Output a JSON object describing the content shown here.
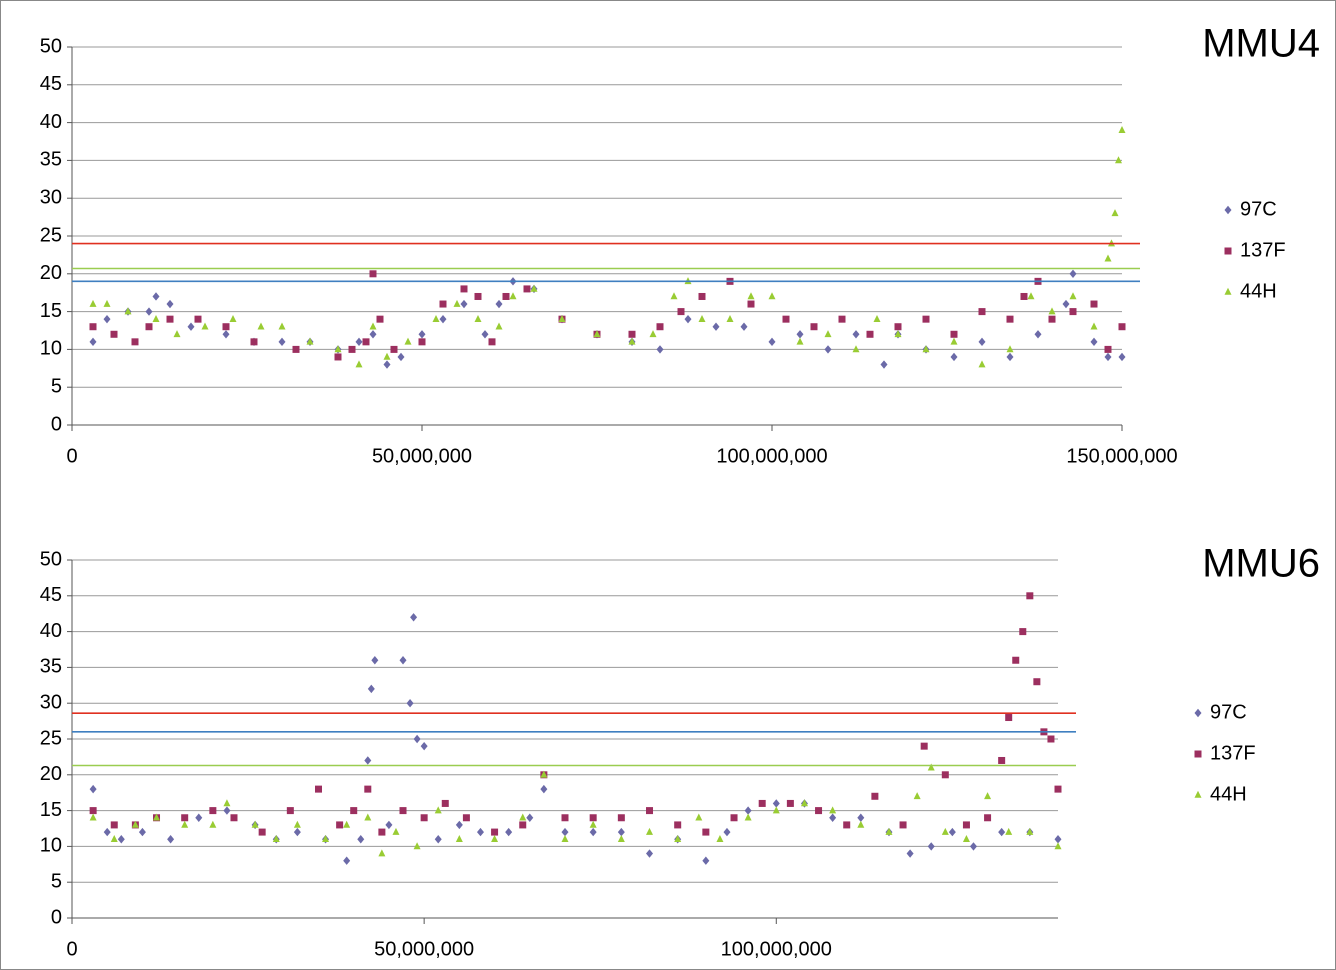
{
  "chart_data": [
    {
      "type": "scatter",
      "title": "MMU4",
      "xlim": [
        0,
        150000000
      ],
      "xticks": [
        0,
        {
          "value": 50000000,
          "label": "50,000,000"
        },
        {
          "value": 100000000,
          "label": "100,000,000"
        },
        {
          "value": 150000000,
          "label": "150,000,000"
        }
      ],
      "ylim": [
        0,
        50
      ],
      "yticks": [
        0,
        5,
        10,
        15,
        20,
        25,
        30,
        35,
        40,
        45,
        50
      ],
      "grid": true,
      "legend": "right",
      "reference_lines": [
        {
          "value": 24,
          "color": "#e03020"
        },
        {
          "value": 20.7,
          "color": "#9acd50"
        },
        {
          "value": 19,
          "color": "#3f7fc0"
        }
      ],
      "series": [
        {
          "name": "97C",
          "color": "#6b6aa8",
          "marker": "diamond",
          "x": [
            3000000,
            5000000,
            8000000,
            11000000,
            12000000,
            14000000,
            17000000,
            22000000,
            26000000,
            30000000,
            34000000,
            38000000,
            41000000,
            43000000,
            45000000,
            47000000,
            50000000,
            53000000,
            56000000,
            59000000,
            61000000,
            63000000,
            66000000,
            70000000,
            75000000,
            80000000,
            84000000,
            88000000,
            92000000,
            96000000,
            100000000,
            104000000,
            108000000,
            112000000,
            116000000,
            118000000,
            122000000,
            126000000,
            130000000,
            134000000,
            138000000,
            142000000,
            143000000,
            146000000,
            148000000,
            150000000
          ],
          "values": [
            11,
            14,
            15,
            15,
            17,
            16,
            13,
            12,
            11,
            11,
            11,
            10,
            11,
            12,
            8,
            9,
            12,
            14,
            16,
            12,
            16,
            19,
            18,
            14,
            12,
            11,
            10,
            14,
            13,
            13,
            11,
            12,
            10,
            12,
            8,
            12,
            10,
            9,
            11,
            9,
            12,
            16,
            20,
            11,
            9,
            9
          ]
        },
        {
          "name": "137F",
          "color": "#9c2f5f",
          "marker": "square",
          "x": [
            3000000,
            6000000,
            9000000,
            11000000,
            14000000,
            18000000,
            22000000,
            26000000,
            32000000,
            38000000,
            40000000,
            42000000,
            43000000,
            44000000,
            46000000,
            50000000,
            53000000,
            56000000,
            58000000,
            60000000,
            62000000,
            65000000,
            70000000,
            75000000,
            80000000,
            84000000,
            87000000,
            90000000,
            94000000,
            97000000,
            102000000,
            106000000,
            110000000,
            114000000,
            118000000,
            122000000,
            126000000,
            130000000,
            134000000,
            136000000,
            138000000,
            140000000,
            143000000,
            146000000,
            148000000,
            150000000
          ],
          "values": [
            13,
            12,
            11,
            13,
            14,
            14,
            13,
            11,
            10,
            9,
            10,
            11,
            20,
            14,
            10,
            11,
            16,
            18,
            17,
            11,
            17,
            18,
            14,
            12,
            12,
            13,
            15,
            17,
            19,
            16,
            14,
            13,
            14,
            12,
            13,
            14,
            12,
            15,
            14,
            17,
            19,
            14,
            15,
            16,
            10,
            13
          ]
        },
        {
          "name": "44H",
          "color": "#99cc33",
          "marker": "triangle",
          "x": [
            3000000,
            5000000,
            8000000,
            12000000,
            15000000,
            19000000,
            23000000,
            27000000,
            30000000,
            34000000,
            38000000,
            41000000,
            43000000,
            45000000,
            48000000,
            52000000,
            55000000,
            58000000,
            61000000,
            63000000,
            66000000,
            70000000,
            75000000,
            80000000,
            83000000,
            86000000,
            88000000,
            90000000,
            94000000,
            97000000,
            100000000,
            104000000,
            108000000,
            112000000,
            115000000,
            118000000,
            122000000,
            126000000,
            130000000,
            134000000,
            137000000,
            140000000,
            143000000,
            146000000,
            148000000,
            148500000,
            149000000,
            149500000,
            150000000
          ],
          "values": [
            16,
            16,
            15,
            14,
            12,
            13,
            14,
            13,
            13,
            11,
            10,
            8,
            13,
            9,
            11,
            14,
            16,
            14,
            13,
            17,
            18,
            14,
            12,
            11,
            12,
            17,
            19,
            14,
            14,
            17,
            17,
            11,
            12,
            10,
            14,
            12,
            10,
            11,
            8,
            10,
            17,
            15,
            17,
            13,
            22,
            24,
            28,
            35,
            39
          ]
        }
      ]
    },
    {
      "type": "scatter",
      "title": "MMU6",
      "xlim": [
        0,
        140000000
      ],
      "xticks": [
        0,
        {
          "value": 50000000,
          "label": "50,000,000"
        },
        {
          "value": 100000000,
          "label": "100,000,000"
        }
      ],
      "ylim": [
        0,
        50
      ],
      "yticks": [
        0,
        5,
        10,
        15,
        20,
        25,
        30,
        35,
        40,
        45,
        50
      ],
      "grid": true,
      "legend": "right",
      "reference_lines": [
        {
          "value": 28.6,
          "color": "#e03020"
        },
        {
          "value": 26,
          "color": "#3f7fc0"
        },
        {
          "value": 21.3,
          "color": "#9acd50"
        }
      ],
      "series": [
        {
          "name": "97C",
          "color": "#6b6aa8",
          "marker": "diamond",
          "x": [
            3000000,
            5000000,
            7000000,
            10000000,
            14000000,
            18000000,
            22000000,
            26000000,
            29000000,
            32000000,
            36000000,
            39000000,
            41000000,
            42000000,
            42500000,
            43000000,
            45000000,
            47000000,
            48000000,
            48500000,
            49000000,
            50000000,
            52000000,
            55000000,
            58000000,
            62000000,
            65000000,
            67000000,
            70000000,
            74000000,
            78000000,
            82000000,
            86000000,
            90000000,
            93000000,
            96000000,
            100000000,
            104000000,
            108000000,
            112000000,
            116000000,
            119000000,
            122000000,
            125000000,
            128000000,
            132000000,
            136000000,
            140000000
          ],
          "values": [
            18,
            12,
            11,
            12,
            11,
            14,
            15,
            13,
            11,
            12,
            11,
            8,
            11,
            22,
            32,
            36,
            13,
            36,
            30,
            42,
            25,
            24,
            11,
            13,
            12,
            12,
            14,
            18,
            12,
            12,
            12,
            9,
            11,
            8,
            12,
            15,
            16,
            16,
            14,
            14,
            12,
            9,
            10,
            12,
            10,
            12,
            12,
            11
          ]
        },
        {
          "name": "137F",
          "color": "#9c2f5f",
          "marker": "square",
          "x": [
            3000000,
            6000000,
            9000000,
            12000000,
            16000000,
            20000000,
            23000000,
            27000000,
            31000000,
            35000000,
            38000000,
            40000000,
            42000000,
            44000000,
            47000000,
            50000000,
            53000000,
            56000000,
            60000000,
            64000000,
            67000000,
            70000000,
            74000000,
            78000000,
            82000000,
            86000000,
            90000000,
            94000000,
            98000000,
            102000000,
            106000000,
            110000000,
            114000000,
            118000000,
            121000000,
            124000000,
            127000000,
            130000000,
            132000000,
            133000000,
            134000000,
            135000000,
            136000000,
            137000000,
            138000000,
            139000000,
            140000000
          ],
          "values": [
            15,
            13,
            13,
            14,
            14,
            15,
            14,
            12,
            15,
            18,
            13,
            15,
            18,
            12,
            15,
            14,
            16,
            14,
            12,
            13,
            20,
            14,
            14,
            14,
            15,
            13,
            12,
            14,
            16,
            16,
            15,
            13,
            17,
            13,
            24,
            20,
            13,
            14,
            22,
            28,
            36,
            40,
            45,
            33,
            26,
            25,
            18
          ]
        },
        {
          "name": "44H",
          "color": "#99cc33",
          "marker": "triangle",
          "x": [
            3000000,
            6000000,
            9000000,
            12000000,
            16000000,
            20000000,
            22000000,
            26000000,
            29000000,
            32000000,
            36000000,
            39000000,
            42000000,
            44000000,
            46000000,
            49000000,
            52000000,
            55000000,
            60000000,
            64000000,
            67000000,
            70000000,
            74000000,
            78000000,
            82000000,
            86000000,
            89000000,
            92000000,
            96000000,
            100000000,
            104000000,
            108000000,
            112000000,
            116000000,
            120000000,
            122000000,
            124000000,
            127000000,
            130000000,
            133000000,
            136000000,
            140000000
          ],
          "values": [
            14,
            11,
            13,
            14,
            13,
            13,
            16,
            13,
            11,
            13,
            11,
            13,
            14,
            9,
            12,
            10,
            15,
            11,
            11,
            14,
            20,
            11,
            13,
            11,
            12,
            11,
            14,
            11,
            14,
            15,
            16,
            15,
            13,
            12,
            17,
            21,
            12,
            11,
            17,
            12,
            12,
            10
          ]
        }
      ]
    }
  ]
}
